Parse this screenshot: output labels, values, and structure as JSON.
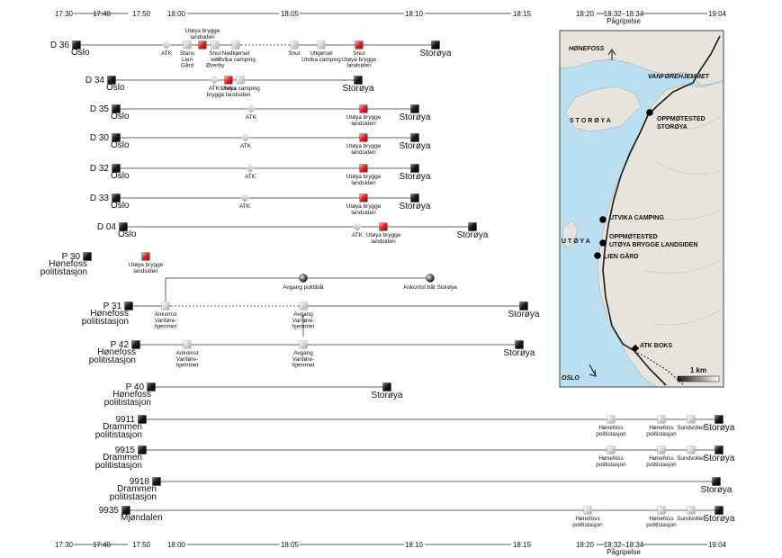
{
  "time_axis": {
    "ticks": [
      "17:30",
      "17:40",
      "17:50",
      "18:00",
      "18:05",
      "18:10",
      "18:15",
      "18:20",
      "18:32–18:34",
      "19:04"
    ],
    "arrest_label": "Pågripelse"
  },
  "units": [
    {
      "code": "D 36",
      "origin": [
        "Oslo"
      ],
      "destination": "Storøya",
      "stops": [
        [
          "ATK"
        ],
        [
          "Stans",
          "Lien",
          "Gård"
        ],
        [
          "Utøya brygge",
          "landsiden"
        ],
        [
          "Snur",
          "ved",
          "Øverby"
        ],
        [
          "Nedkjørsel",
          "Utvika camping"
        ],
        [
          "Snur"
        ],
        [
          "Utkjørsel",
          "Utvika camping"
        ],
        [
          "Snur",
          "Utøya brygge",
          "landsiden"
        ]
      ]
    },
    {
      "code": "D 34",
      "origin": [
        "Oslo"
      ],
      "destination": "Storøya",
      "stops": [
        [
          "ATK"
        ],
        [
          "Utøya",
          "brygge landsiden"
        ],
        [
          "Utvika camping"
        ]
      ]
    },
    {
      "code": "D 35",
      "origin": [
        "Oslo"
      ],
      "destination": "Storøya",
      "stops": [
        [
          "ATK"
        ],
        [
          "Utøya brygge",
          "landsiden"
        ]
      ]
    },
    {
      "code": "D 30",
      "origin": [
        "Oslo"
      ],
      "destination": "Storøya",
      "stops": [
        [
          "ATK"
        ],
        [
          "Utøya brygge",
          "landsiden"
        ]
      ]
    },
    {
      "code": "D 32",
      "origin": [
        "Oslo"
      ],
      "destination": "Storøya",
      "stops": [
        [
          "ATK"
        ],
        [
          "Utøya brygge",
          "landsiden"
        ]
      ]
    },
    {
      "code": "D 33",
      "origin": [
        "Oslo"
      ],
      "destination": "Storøya",
      "stops": [
        [
          "ATK"
        ],
        [
          "Utøya brygge",
          "landsiden"
        ]
      ]
    },
    {
      "code": "D 04",
      "origin": [
        "Oslo"
      ],
      "destination": "Storøya",
      "stops": [
        [
          "ATK"
        ],
        [
          "Utøya brygge",
          "landsiden"
        ]
      ]
    },
    {
      "code": "P 30",
      "origin": [
        "Hønefoss",
        "politistasjon"
      ],
      "destination": "",
      "stops": [
        [
          "Utøya brygge",
          "landsiden"
        ]
      ]
    },
    {
      "code": "P 31",
      "origin": [
        "Hønefoss",
        "politistasjon"
      ],
      "destination": "Storøya",
      "stops": [
        [
          "Ankomst",
          "Vanføre-",
          "hjemmet"
        ],
        [
          "Avgang",
          "Vanføre-",
          "hjemmet"
        ]
      ]
    },
    {
      "code": "P 42",
      "origin": [
        "Hønefoss",
        "politistasjon"
      ],
      "destination": "Storøya",
      "stops": [
        [
          "Ankomst",
          "Vanføre-",
          "hjemmet"
        ],
        [
          "Avgang",
          "Vanføre-",
          "hjemmet"
        ]
      ]
    },
    {
      "code": "P 40",
      "origin": [
        "Hønefoss",
        "politistasjon"
      ],
      "destination": "Storøya",
      "stops": []
    },
    {
      "code": "9911",
      "origin": [
        "Drammen",
        "politistasjon"
      ],
      "destination": "Storøya",
      "stops": [
        [
          "Hønefoss",
          "politistasjon"
        ],
        [
          "Hønefoss",
          "politistasjon"
        ],
        [
          "Sundvollen"
        ]
      ]
    },
    {
      "code": "9915",
      "origin": [
        "Drammen",
        "politistasjon"
      ],
      "destination": "Storøya",
      "stops": [
        [
          "Hønefoss",
          "politistasjon"
        ],
        [
          "Hønefoss",
          "politistasjon"
        ],
        [
          "Sundvollen"
        ]
      ]
    },
    {
      "code": "9918",
      "origin": [
        "Drammen",
        "politistasjon"
      ],
      "destination": "Storøya",
      "stops": []
    },
    {
      "code": "9935",
      "origin": [
        "Mjøndalen"
      ],
      "destination": "Storøya",
      "stops": [
        [
          "Hønefoss",
          "politistasjon"
        ],
        [
          "Hønefoss",
          "politistasjon"
        ],
        [
          "Sundvollen"
        ]
      ]
    }
  ],
  "boats": [
    {
      "label": "Avgang politibåt"
    },
    {
      "label": "Ankomst båt Storøya"
    }
  ],
  "map": {
    "places": {
      "honefoss": "HØNEFOSS",
      "vanforehjemmet": "VANFØREHJEMMET",
      "storoya": "S T O R Ø Y A",
      "utoya": "U T Ø Y A",
      "oslo": "OSLO"
    },
    "markers": {
      "oppmote_storoya": [
        "OPPMØTESTED",
        "STORØYA"
      ],
      "utvika_camping": "UTVIKA CAMPING",
      "oppmote_utoya": [
        "OPPMØTESTED",
        "UTØYA BRYGGE LANDSIDEN"
      ],
      "lien_gard": "LIEN GÅRD",
      "atk_boks": "ATK BOKS"
    },
    "scale": "1 km"
  },
  "colors": {
    "line": "#333333",
    "highlight": "#e02020",
    "water": "#b9dff0",
    "land": "#e7e4dc",
    "road": "#1a1a1a"
  }
}
